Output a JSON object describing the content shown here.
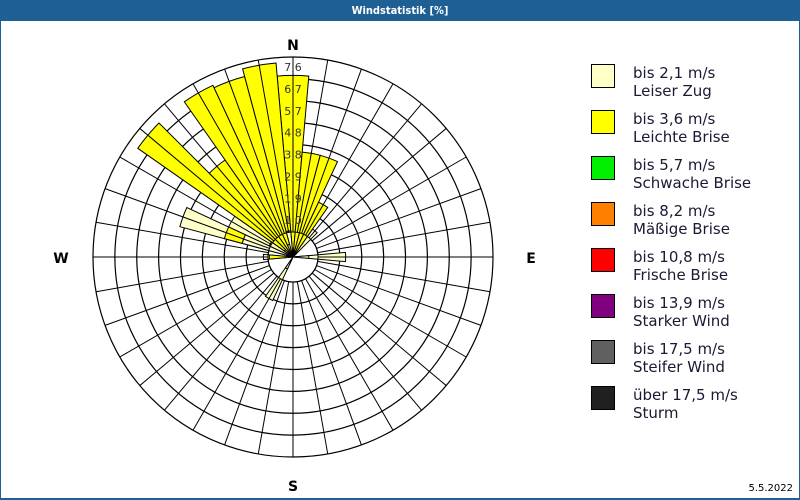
{
  "window": {
    "title": "Windstatistik [%]"
  },
  "footer": {
    "date": "5.5.2022"
  },
  "compass": {
    "n": "N",
    "e": "E",
    "s": "S",
    "w": "W"
  },
  "legend": [
    {
      "line1": "bis 2,1 m/s",
      "line2": "Leiser Zug",
      "color": "#ffffc8"
    },
    {
      "line1": "bis 3,6 m/s",
      "line2": "Leichte Brise",
      "color": "#ffff00"
    },
    {
      "line1": "bis 5,7 m/s",
      "line2": "Schwache Brise",
      "color": "#00ee00"
    },
    {
      "line1": "bis 8,2 m/s",
      "line2": "Mäßige Brise",
      "color": "#ff8000"
    },
    {
      "line1": "bis 10,8 m/s",
      "line2": "Frische Brise",
      "color": "#ff0000"
    },
    {
      "line1": "bis 13,9 m/s",
      "line2": "Starker Wind",
      "color": "#800080"
    },
    {
      "line1": "bis 17,5 m/s",
      "line2": "Steifer Wind",
      "color": "#606060"
    },
    {
      "line1": "über 17,5 m/s",
      "line2": "Sturm",
      "color": "#202020"
    }
  ],
  "chart_data": {
    "type": "polar-bar",
    "title": "Windstatistik [%]",
    "rings": [
      "1,0",
      "1,9",
      "2,9",
      "3,8",
      "4,8",
      "5,7",
      "6,7",
      "7,6"
    ],
    "rmax": 7.6,
    "sector_width_deg": 10,
    "sectors": [
      {
        "dir": 0,
        "leiser": 0.2,
        "leichte": 6.7
      },
      {
        "dir": 10,
        "leiser": 0.2,
        "leichte": 3.8
      },
      {
        "dir": 20,
        "leiser": 0.2,
        "leichte": 3.8
      },
      {
        "dir": 30,
        "leiser": 0.2,
        "leichte": 2.1
      },
      {
        "dir": 40,
        "leiser": 0.2,
        "leichte": 0.0
      },
      {
        "dir": 90,
        "leiser": 0.6,
        "leichte": 0.0
      },
      {
        "dir": 210,
        "leiser": 0.5,
        "leichte": 0.0
      },
      {
        "dir": 270,
        "leiser": 0.1,
        "leichte": 0.8
      },
      {
        "dir": 290,
        "leiser": 2.0,
        "leichte": 0.7
      },
      {
        "dir": 300,
        "leiser": 1.0,
        "leichte": 0.0
      },
      {
        "dir": 310,
        "leiser": 0.4,
        "leichte": 6.8
      },
      {
        "dir": 320,
        "leiser": 0.0,
        "leichte": 4.5
      },
      {
        "dir": 330,
        "leiser": 0.2,
        "leichte": 7.0
      },
      {
        "dir": 340,
        "leiser": 0.5,
        "leichte": 6.6
      },
      {
        "dir": 350,
        "leiser": 1.0,
        "leichte": 6.4
      }
    ],
    "series": [
      {
        "name": "bis 2,1 m/s Leiser Zug",
        "color": "#ffffc8"
      },
      {
        "name": "bis 3,6 m/s Leichte Brise",
        "color": "#ffff00"
      }
    ]
  }
}
